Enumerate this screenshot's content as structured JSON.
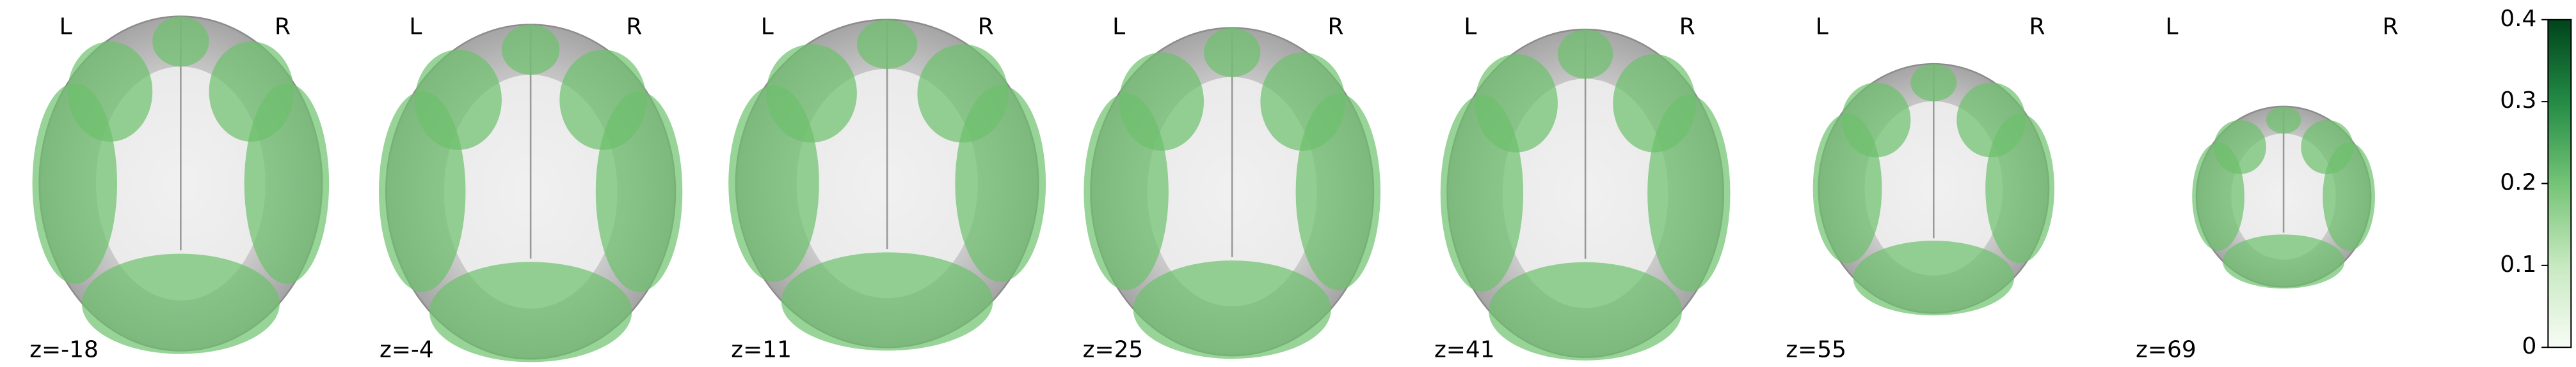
{
  "panels": [
    {
      "left": "L",
      "right": "R",
      "label": "z=-18"
    },
    {
      "left": "L",
      "right": "R",
      "label": "z=-4"
    },
    {
      "left": "L",
      "right": "R",
      "label": "z=11"
    },
    {
      "left": "L",
      "right": "R",
      "label": "z=25"
    },
    {
      "left": "L",
      "right": "R",
      "label": "z=41"
    },
    {
      "left": "L",
      "right": "R",
      "label": "z=55"
    },
    {
      "left": "L",
      "right": "R",
      "label": "z=69"
    }
  ],
  "colorbar": {
    "colormap": "Greens",
    "ylim": [
      0,
      0.4
    ],
    "yticks": [
      0,
      0.1,
      0.2,
      0.3,
      0.4
    ]
  }
}
